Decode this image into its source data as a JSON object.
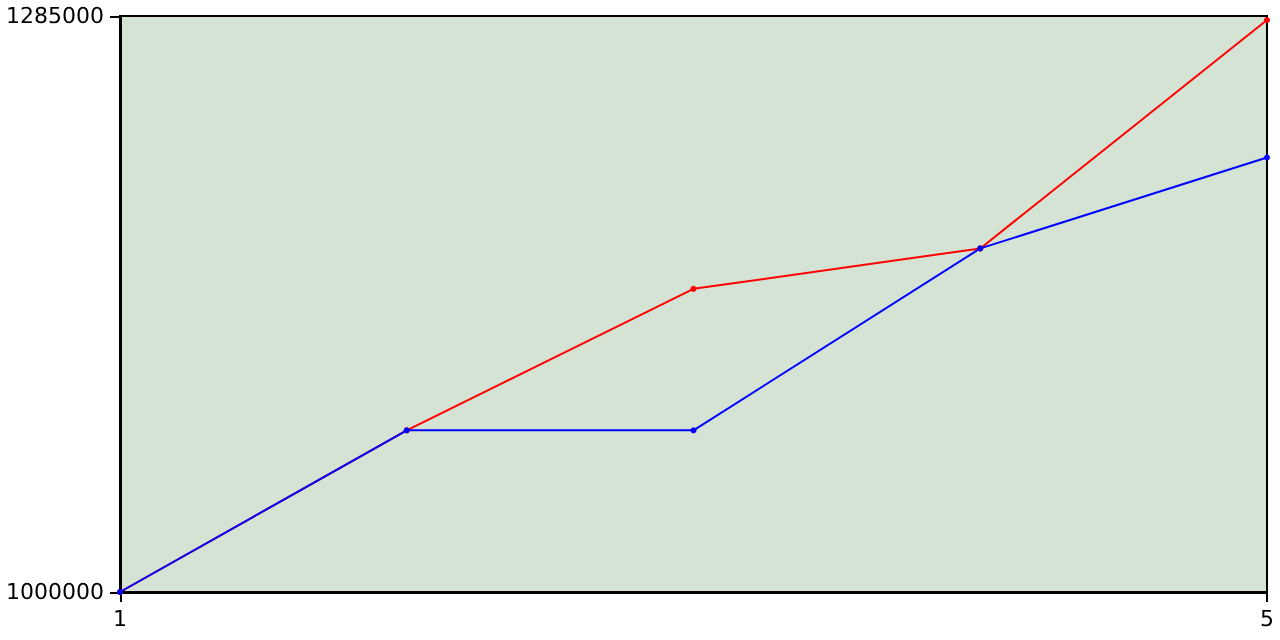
{
  "chart_data": {
    "type": "line",
    "x": [
      1,
      2,
      3,
      4,
      5
    ],
    "series": [
      {
        "color": "#ff0000",
        "values": [
          1000000,
          1080000,
          1150000,
          1170000,
          1283000
        ]
      },
      {
        "color": "#0000ff",
        "values": [
          1000000,
          1080000,
          1080000,
          1170000,
          1215000
        ]
      }
    ],
    "xlim": [
      1,
      5
    ],
    "xticks": [
      1,
      5
    ],
    "ylim": [
      1000000,
      1285000
    ],
    "yticks": [
      1000000,
      1285000
    ],
    "grid": false,
    "marker": "circle",
    "line_style": "solid"
  }
}
